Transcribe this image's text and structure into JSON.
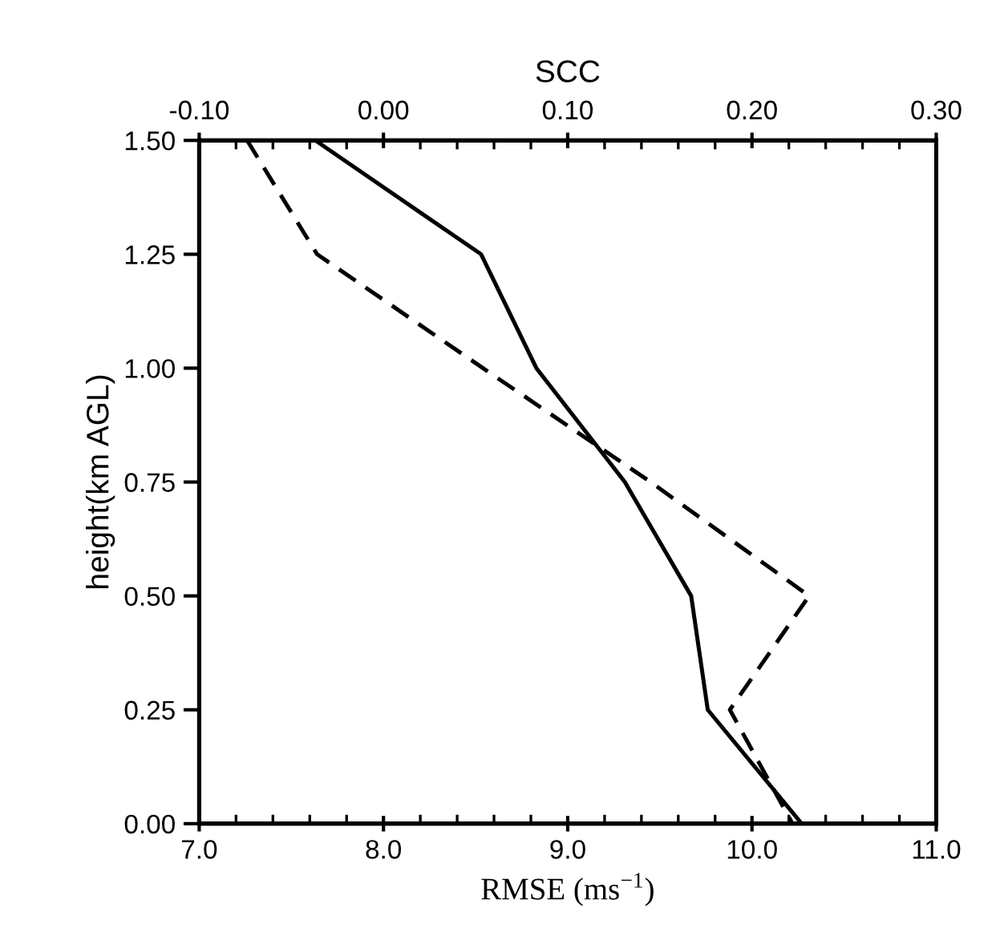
{
  "chart_data": {
    "type": "line",
    "orientation": "horizontal",
    "xlabel": "RMSE (ms$^{−1}$)",
    "x2label": "SCC",
    "ylabel": "height(km AGL)",
    "x": [
      1.5,
      1.25,
      1.0,
      0.75,
      0.5,
      0.25,
      0.0
    ],
    "series": [
      {
        "color": "#000000",
        "line_style": "solid",
        "values": [
          7.63,
          8.53,
          8.83,
          9.31,
          9.67,
          9.76,
          10.27
        ]
      },
      {
        "color": "#000000",
        "line_style": "dashed",
        "axis": "x2",
        "values": [
          -0.074,
          -0.036,
          0.054,
          0.145,
          0.231,
          0.188,
          0.222
        ]
      }
    ],
    "xlim": [
      7.0,
      11.0
    ],
    "xticks": [
      {
        "value": 7.0,
        "label": "7.0"
      },
      {
        "value": 8.0,
        "label": "8.0"
      },
      {
        "value": 9.0,
        "label": "9.0"
      },
      {
        "value": 10.0,
        "label": "10.0"
      },
      {
        "value": 11.0,
        "label": "11.0"
      }
    ],
    "x2lim": [
      -0.1,
      0.3
    ],
    "x2ticks": [
      {
        "value": -0.1,
        "label": "-0.10"
      },
      {
        "value": 0.0,
        "label": "0.00"
      },
      {
        "value": 0.1,
        "label": "0.10"
      },
      {
        "value": 0.2,
        "label": "0.20"
      },
      {
        "value": 0.3,
        "label": "0.30"
      }
    ],
    "ylim": [
      0.0,
      1.5
    ],
    "yticks": [
      {
        "value": 0.0,
        "label": "0.00"
      },
      {
        "value": 0.25,
        "label": "0.25"
      },
      {
        "value": 0.5,
        "label": "0.50"
      },
      {
        "value": 0.75,
        "label": "0.75"
      },
      {
        "value": 1.0,
        "label": "1.00"
      },
      {
        "value": 1.25,
        "label": "1.25"
      },
      {
        "value": 1.5,
        "label": "1.50"
      }
    ],
    "grid": false,
    "legend": false
  }
}
